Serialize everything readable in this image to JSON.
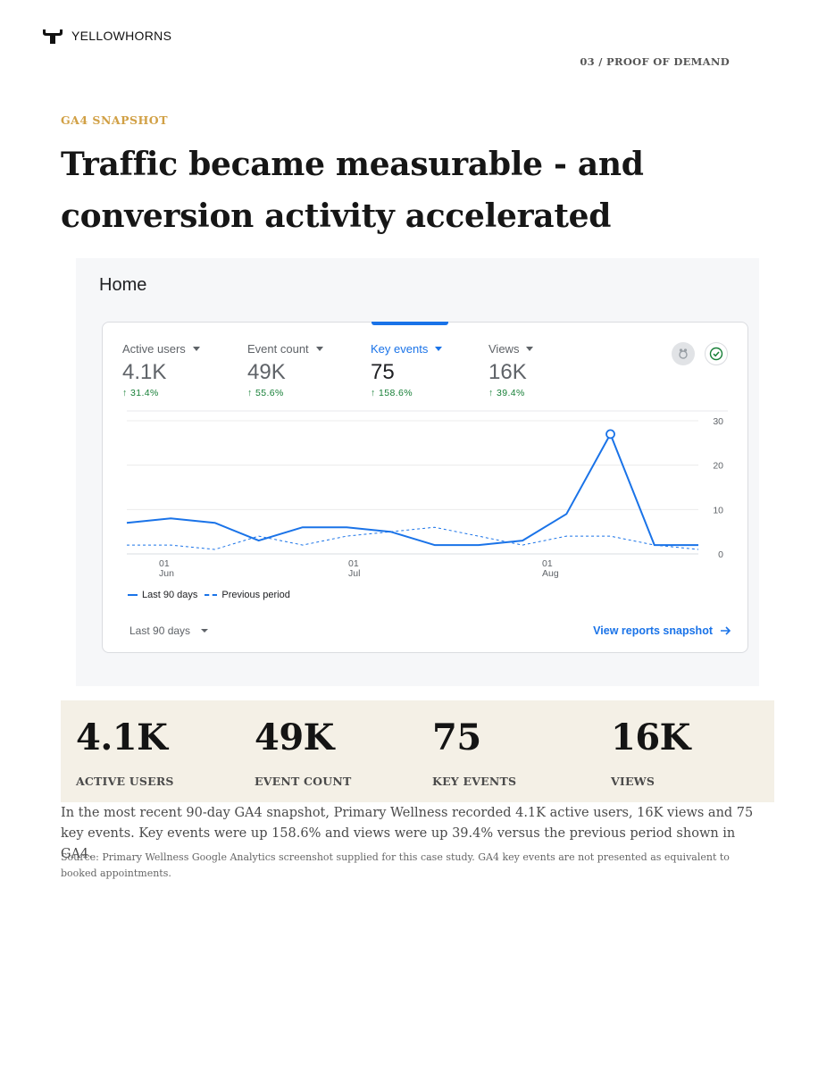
{
  "brand": {
    "name": "YELLOWHORNS",
    "logo_icon": "horns-logo-icon"
  },
  "section_tag": "03 / PROOF OF DEMAND",
  "eyebrow": "GA4 SNAPSHOT",
  "headline": "Traffic became measurable - and conversion activity accelerated",
  "screenshot": {
    "page_title": "Home",
    "metrics": [
      {
        "label": "Active users",
        "value": "4.1K",
        "change": "31.4%",
        "active": false
      },
      {
        "label": "Event count",
        "value": "49K",
        "change": "55.6%",
        "active": false
      },
      {
        "label": "Key events",
        "value": "75",
        "change": "158.6%",
        "active": true
      },
      {
        "label": "Views",
        "value": "16K",
        "change": "39.4%",
        "active": false
      }
    ],
    "change_icon": "arrow-up-icon",
    "icons": [
      "insights-icon",
      "check-circle-icon"
    ],
    "legend": {
      "current": "Last 90 days",
      "previous": "Previous period"
    },
    "date_range": "Last 90 days",
    "view_link": "View reports snapshot",
    "accent_color": "#1a73e8",
    "positive_color": "#188038"
  },
  "chart_data": {
    "type": "line",
    "y_ticks": [
      "30",
      "20",
      "10",
      "0"
    ],
    "ylim": [
      0,
      30
    ],
    "x_ticks": [
      {
        "day": "01",
        "month": "Jun"
      },
      {
        "day": "01",
        "month": "Jul"
      },
      {
        "day": "01",
        "month": "Aug"
      }
    ],
    "series": [
      {
        "name": "Last 90 days",
        "style": "solid",
        "values": [
          7,
          8,
          7,
          3,
          6,
          6,
          5,
          2,
          2,
          3,
          9,
          27,
          2,
          2
        ]
      },
      {
        "name": "Previous period",
        "style": "dashed",
        "values": [
          2,
          2,
          1,
          4,
          2,
          4,
          5,
          6,
          4,
          2,
          4,
          4,
          2,
          1
        ]
      }
    ],
    "highlight_index": 11,
    "grid": true
  },
  "stats": [
    {
      "value": "4.1K",
      "label": "ACTIVE USERS"
    },
    {
      "value": "49K",
      "label": "EVENT COUNT"
    },
    {
      "value": "75",
      "label": "KEY EVENTS"
    },
    {
      "value": "16K",
      "label": "VIEWS"
    }
  ],
  "body_text": "In the most recent 90-day GA4 snapshot, Primary Wellness recorded 4.1K active users, 16K views and 75 key events. Key events were up 158.6% and views were up 39.4% versus the previous period shown in GA4.",
  "source_text": "Source: Primary Wellness Google Analytics screenshot supplied for this case study. GA4 key events are not presented as equivalent to booked appointments.",
  "colors": {
    "gold": "#d1a045",
    "band": "#f4f0e6"
  }
}
